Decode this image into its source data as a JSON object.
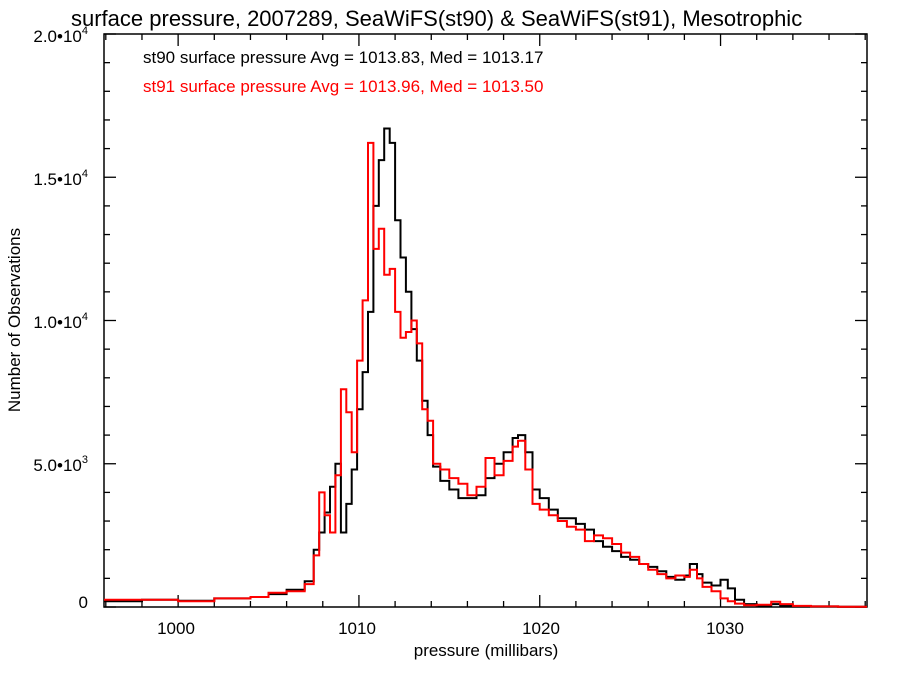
{
  "chart_data": {
    "type": "line",
    "title": "surface pressure, 2007289, SeaWiFS(st90) & SeaWiFS(st91), Mesotrophic",
    "xlabel": "pressure (millibars)",
    "ylabel": "Number of Observations",
    "xlim": [
      995.9,
      1038.1
    ],
    "ylim": [
      0,
      20000
    ],
    "x_ticks": [
      1000,
      1010,
      1020,
      1030
    ],
    "y_ticks": [
      0,
      5000,
      10000,
      15000,
      20000
    ],
    "x_tick_labels": [
      "1000",
      "1010",
      "1020",
      "1030"
    ],
    "y_tick_labels": [
      "0",
      "5.0•10",
      "1.0•10",
      "1.5•10",
      "2.0•10"
    ],
    "y_tick_exponents": [
      "",
      "3",
      "4",
      "4",
      "4"
    ],
    "grid": false,
    "legend_position": "top-left",
    "series": [
      {
        "name": "st90 surface pressure Avg = 1013.83, Med = 1013.17",
        "color": "#000000",
        "style": "step",
        "x": [
          995.9,
          998,
          1000,
          1002,
          1004,
          1005,
          1006,
          1007,
          1007.5,
          1007.8,
          1008.1,
          1008.4,
          1008.7,
          1009.0,
          1009.3,
          1009.6,
          1009.9,
          1010.2,
          1010.5,
          1010.8,
          1011.1,
          1011.4,
          1011.7,
          1012.0,
          1012.3,
          1012.6,
          1012.9,
          1013.2,
          1013.5,
          1013.8,
          1014.1,
          1014.5,
          1015,
          1015.5,
          1016,
          1016.5,
          1017,
          1017.5,
          1018,
          1018.5,
          1018.8,
          1019.2,
          1019.6,
          1020,
          1020.5,
          1021,
          1021.5,
          1022,
          1022.5,
          1023,
          1023.5,
          1024,
          1024.5,
          1025,
          1025.5,
          1026,
          1026.5,
          1027,
          1027.5,
          1028,
          1028.3,
          1028.7,
          1029,
          1029.5,
          1030,
          1030.4,
          1030.8,
          1031.3,
          1032,
          1032.8,
          1033.3,
          1034,
          1035,
          1036.5,
          1038.1
        ],
        "values": [
          200,
          250,
          220,
          300,
          350,
          450,
          600,
          900,
          2000,
          2600,
          3300,
          4200,
          5000,
          2600,
          3600,
          4800,
          6900,
          8200,
          10300,
          14000,
          15600,
          16700,
          16200,
          13500,
          12200,
          11000,
          9700,
          8600,
          7200,
          6000,
          4900,
          4400,
          4100,
          3800,
          3800,
          3900,
          4500,
          5000,
          5400,
          5900,
          6000,
          5400,
          4100,
          3800,
          3400,
          3100,
          3100,
          2900,
          2700,
          2300,
          2100,
          1950,
          1750,
          1650,
          1500,
          1400,
          1250,
          1050,
          950,
          1100,
          1500,
          1150,
          850,
          750,
          950,
          650,
          250,
          100,
          50,
          100,
          50,
          30,
          20,
          10,
          10
        ]
      },
      {
        "name": "st91 surface pressure Avg = 1013.96, Med = 1013.50",
        "color": "#ff0000",
        "style": "step",
        "x": [
          995.9,
          998,
          1000,
          1002,
          1004,
          1005,
          1006,
          1007,
          1007.5,
          1007.8,
          1008.1,
          1008.4,
          1008.7,
          1009.0,
          1009.3,
          1009.6,
          1009.9,
          1010.2,
          1010.5,
          1010.8,
          1011.1,
          1011.4,
          1011.7,
          1012.0,
          1012.3,
          1012.6,
          1012.9,
          1013.2,
          1013.5,
          1013.8,
          1014.1,
          1014.5,
          1015,
          1015.5,
          1016,
          1016.5,
          1017,
          1017.5,
          1018,
          1018.5,
          1018.8,
          1019.2,
          1019.6,
          1020,
          1020.5,
          1021,
          1021.5,
          1022,
          1022.5,
          1023,
          1023.5,
          1024,
          1024.5,
          1025,
          1025.5,
          1026,
          1026.5,
          1027,
          1027.5,
          1028,
          1028.3,
          1028.7,
          1029,
          1029.5,
          1030,
          1030.4,
          1030.8,
          1031.3,
          1032,
          1032.8,
          1033.3,
          1034,
          1035,
          1036.5,
          1038.1
        ],
        "values": [
          250,
          250,
          200,
          300,
          350,
          500,
          550,
          800,
          1800,
          4000,
          3200,
          2600,
          4600,
          7600,
          6800,
          5400,
          8600,
          10700,
          16200,
          12500,
          13200,
          11600,
          11800,
          10300,
          9400,
          9600,
          10000,
          9200,
          6900,
          6500,
          5000,
          4800,
          4500,
          4300,
          3900,
          4200,
          5200,
          4600,
          5100,
          5600,
          5800,
          4800,
          3600,
          3400,
          3200,
          3000,
          2800,
          2700,
          2300,
          2500,
          2400,
          2200,
          1900,
          1750,
          1500,
          1300,
          1150,
          1000,
          1100,
          1050,
          1300,
          1000,
          700,
          550,
          300,
          200,
          120,
          60,
          80,
          180,
          100,
          40,
          20,
          10,
          10
        ]
      }
    ]
  }
}
